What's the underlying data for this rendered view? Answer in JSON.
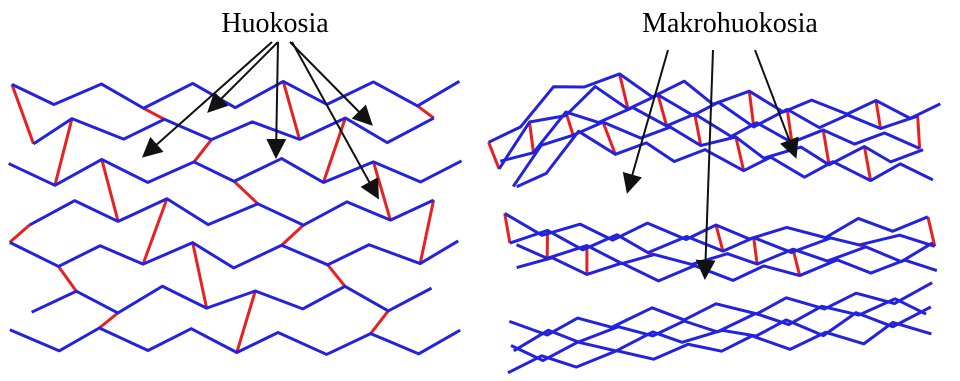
{
  "labels": {
    "left": "Huokosia",
    "right": "Makrohuokosia"
  }
}
